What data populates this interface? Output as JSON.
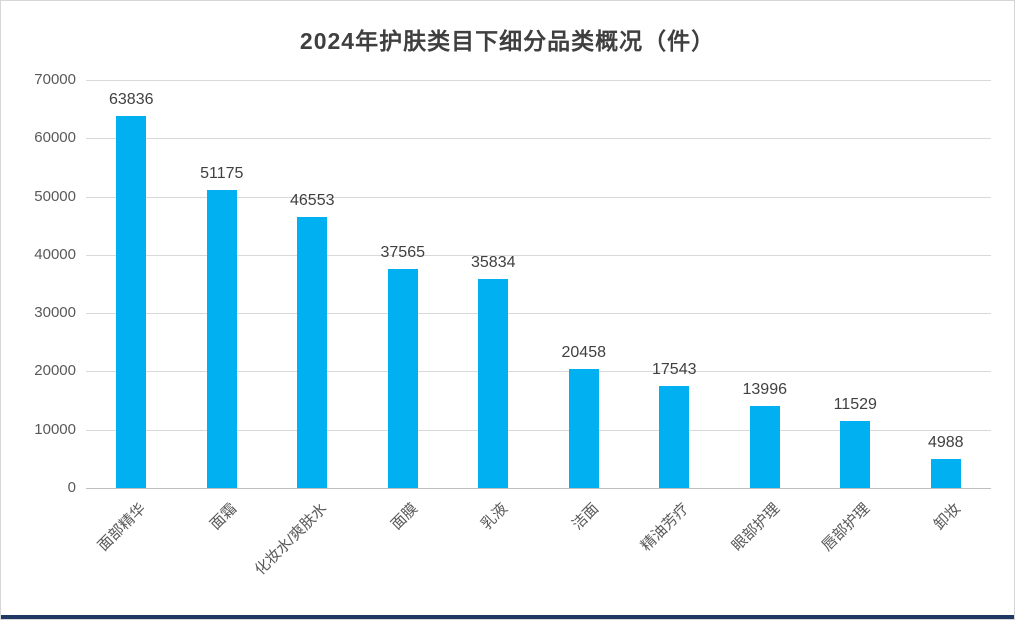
{
  "chart_data": {
    "type": "bar",
    "title": "2024年护肤类目下细分品类概况（件）",
    "categories": [
      "面部精华",
      "面霜",
      "化妆水/爽肤水",
      "面膜",
      "乳液",
      "洁面",
      "精油芳疗",
      "眼部护理",
      "唇部护理",
      "卸妆"
    ],
    "values": [
      63836,
      51175,
      46553,
      37565,
      35834,
      20458,
      17543,
      13996,
      11529,
      4988
    ],
    "xlabel": "",
    "ylabel": "",
    "ylim": [
      0,
      70000
    ],
    "ytick_step": 10000,
    "ytick_labels": [
      "0",
      "10000",
      "20000",
      "30000",
      "40000",
      "50000",
      "60000",
      "70000"
    ],
    "grid": true,
    "legend_position": "none",
    "data_labels_shown": true,
    "x_tick_rotation_deg": 45
  },
  "colors": {
    "bar_fill": "#00B0F0",
    "gridline": "#D9D9D9",
    "axis_baseline": "#BFBFBF",
    "title_text": "#3F3F3F",
    "data_label_text": "#404040",
    "axis_label_text": "#595959",
    "bottom_strip": "#1F3864",
    "background": "#FFFFFF"
  }
}
